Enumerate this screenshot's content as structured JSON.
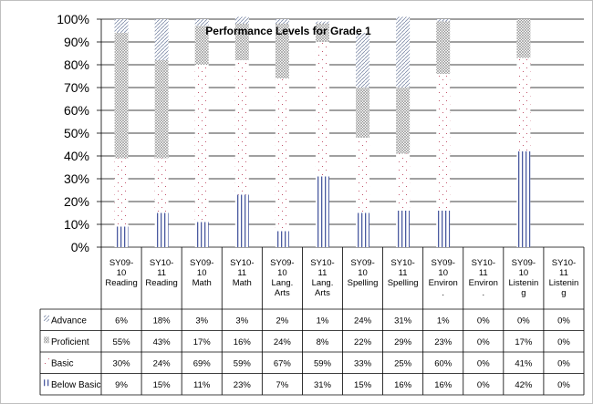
{
  "chart_data": {
    "type": "bar",
    "stacked": true,
    "percent_stacked": true,
    "title": "Performance Levels for Grade 1",
    "y_ticks": [
      "100%",
      "90%",
      "80%",
      "70%",
      "60%",
      "50%",
      "40%",
      "30%",
      "20%",
      "10%",
      "0%"
    ],
    "ylim": [
      0,
      100
    ],
    "grid": true,
    "legend_placement": "data-table",
    "categories": [
      [
        "SY09-",
        "10",
        "Reading"
      ],
      [
        "SY10-",
        "11",
        "Reading"
      ],
      [
        "SY09-",
        "10",
        "Math"
      ],
      [
        "SY10-",
        "11",
        "Math"
      ],
      [
        "SY09-",
        "10",
        "Lang.",
        "Arts"
      ],
      [
        "SY10-",
        "11",
        "Lang.",
        "Arts"
      ],
      [
        "SY09-",
        "10",
        "Spelling"
      ],
      [
        "SY10-",
        "11",
        "Spelling"
      ],
      [
        "SY09-",
        "10",
        "Environ",
        "."
      ],
      [
        "SY10-",
        "11",
        "Environ",
        "."
      ],
      [
        "SY09-",
        "10",
        "Listenin",
        "g"
      ],
      [
        "SY10-",
        "11",
        "Listenin",
        "g"
      ]
    ],
    "series": [
      {
        "name": "Advance",
        "values": [
          6,
          18,
          3,
          3,
          2,
          1,
          24,
          31,
          1,
          0,
          0,
          0
        ],
        "labels": [
          "6%",
          "18%",
          "3%",
          "3%",
          "2%",
          "1%",
          "24%",
          "31%",
          "1%",
          "0%",
          "0%",
          "0%"
        ]
      },
      {
        "name": "Proficient",
        "values": [
          55,
          43,
          17,
          16,
          24,
          8,
          22,
          29,
          23,
          0,
          17,
          0
        ],
        "labels": [
          "55%",
          "43%",
          "17%",
          "16%",
          "24%",
          "8%",
          "22%",
          "29%",
          "23%",
          "0%",
          "17%",
          "0%"
        ]
      },
      {
        "name": "Basic",
        "values": [
          30,
          24,
          69,
          59,
          67,
          59,
          33,
          25,
          60,
          0,
          41,
          0
        ],
        "labels": [
          "30%",
          "24%",
          "69%",
          "59%",
          "67%",
          "59%",
          "33%",
          "25%",
          "60%",
          "0%",
          "41%",
          "0%"
        ]
      },
      {
        "name": "Below Basic",
        "values": [
          9,
          15,
          11,
          23,
          7,
          31,
          15,
          16,
          16,
          0,
          42,
          0
        ],
        "labels": [
          "9%",
          "15%",
          "11%",
          "23%",
          "7%",
          "31%",
          "15%",
          "16%",
          "16%",
          "0%",
          "42%",
          "0%"
        ]
      }
    ],
    "series_colors": {
      "Advance": "#7d8aa8",
      "Proficient": "#8a8a8a",
      "Basic": "#c4566e",
      "Below Basic": "#4a5aa0"
    }
  }
}
